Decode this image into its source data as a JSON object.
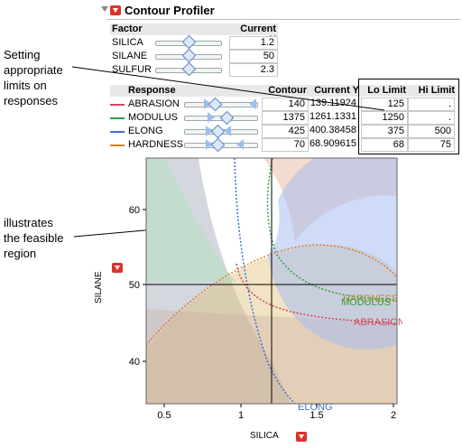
{
  "panel": {
    "title": "Contour Profiler"
  },
  "factor_table": {
    "header_factor": "Factor",
    "header_current_x": "Current X",
    "rows": [
      {
        "name": "SILICA",
        "value": "1.2",
        "slider_fraction": 0.47
      },
      {
        "name": "SILANE",
        "value": "50",
        "slider_fraction": 0.5
      },
      {
        "name": "SULFUR",
        "value": "2.3",
        "slider_fraction": 0.5
      }
    ]
  },
  "response_table": {
    "header_response": "Response",
    "header_contour": "Contour",
    "header_current_y": "Current Y",
    "header_lo": "Lo Limit",
    "header_hi": "Hi Limit",
    "rows": [
      {
        "name": "ABRASION",
        "color": "#d9435a",
        "contour": "140",
        "current_y": "139.11924",
        "lo": "125",
        "hi": "."
      },
      {
        "name": "MODULUS",
        "color": "#2ea043",
        "contour": "1375",
        "current_y": "1261.1331",
        "lo": "1250",
        "hi": "."
      },
      {
        "name": "ELONG",
        "color": "#3d6fd6",
        "contour": "425",
        "current_y": "400.38458",
        "lo": "375",
        "hi": "500"
      },
      {
        "name": "HARDNESS",
        "color": "#e07b2a",
        "contour": "70",
        "current_y": "68.909615",
        "lo": "68",
        "hi": "75"
      }
    ]
  },
  "annotations": {
    "limits_lines": [
      "Setting",
      "appropriate",
      "limits on",
      "responses"
    ],
    "feasible_lines": [
      "illustrates",
      "the feasible",
      "region"
    ]
  },
  "plot": {
    "xlabel": "SILICA",
    "ylabel": "SILANE",
    "x_ticks": [
      "0.5",
      "1",
      "1.5",
      "2"
    ],
    "y_ticks": [
      "40",
      "50",
      "60"
    ],
    "curve_labels": {
      "abrasion": "ABRASION",
      "elong": "ELONG",
      "hardness": "HARDNESS",
      "modulus": "MODULUS"
    },
    "crosshair": {
      "x": 1.2,
      "y": 50
    }
  }
}
